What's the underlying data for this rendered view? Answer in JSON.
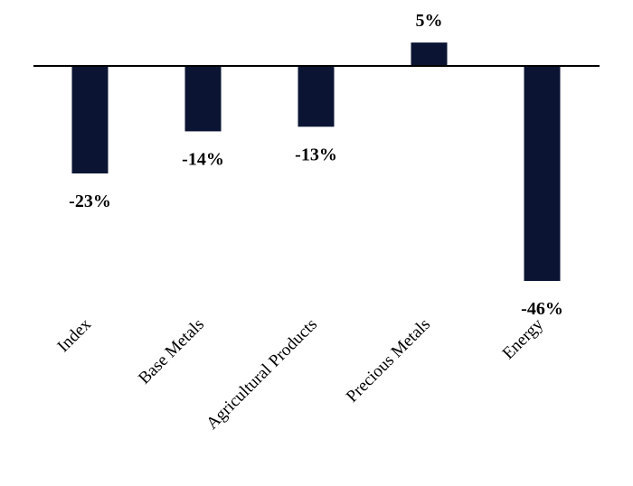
{
  "chart_data": {
    "type": "bar",
    "title": "",
    "xlabel": "",
    "ylabel": "",
    "categories": [
      "Index",
      "Base Metals",
      "Agricultural Products",
      "Precious Metals",
      "Energy"
    ],
    "values": [
      -23,
      -14,
      -13,
      5,
      -46
    ],
    "data_labels": [
      "-23%",
      "-14%",
      "-13%",
      "5%",
      "-46%"
    ],
    "unit": "%",
    "ylim": [
      -46,
      5
    ],
    "grid": false,
    "legend": "none",
    "bar_color": "#0b1533",
    "axis_color": "#000000"
  }
}
